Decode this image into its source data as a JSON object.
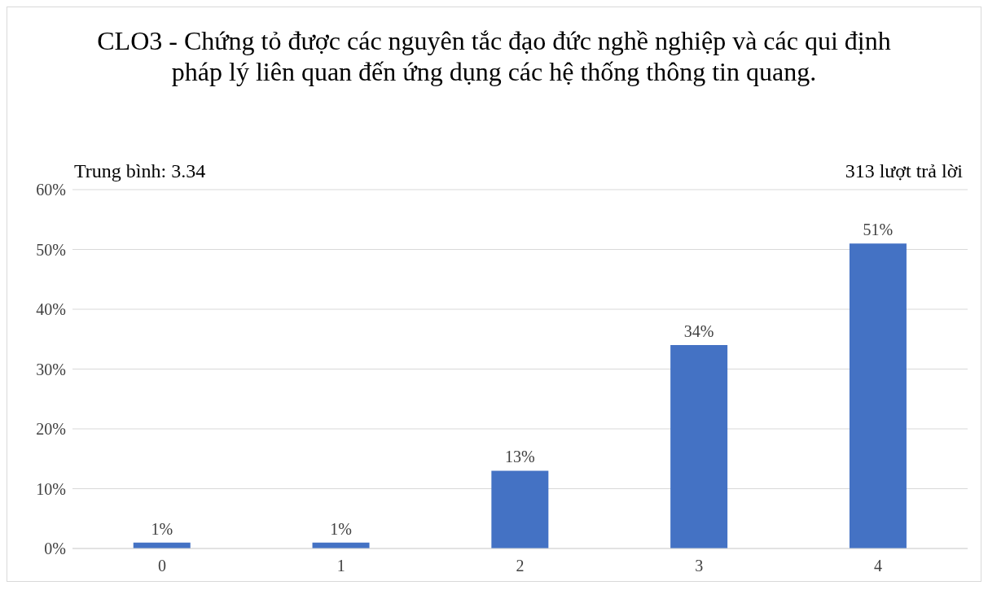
{
  "chart_data": {
    "type": "bar",
    "title": "CLO3 - Chứng tỏ được các nguyên tắc đạo đức nghề nghiệp và các qui định pháp lý liên quan đến ứng dụng các hệ thống thông tin quang.",
    "annotations": [
      "Trung bình: 3.34",
      "313 lượt trả lời"
    ],
    "categories": [
      "0",
      "1",
      "2",
      "3",
      "4"
    ],
    "values": [
      1,
      1,
      13,
      34,
      51
    ],
    "value_labels": [
      "1%",
      "1%",
      "13%",
      "34%",
      "51%"
    ],
    "color": "#4472c4",
    "ylim": [
      0,
      60
    ],
    "yticks": [
      {
        "value": 0,
        "label": "0%"
      },
      {
        "value": 10,
        "label": "10%"
      },
      {
        "value": 20,
        "label": "20%"
      },
      {
        "value": 30,
        "label": "30%"
      },
      {
        "value": 40,
        "label": "40%"
      },
      {
        "value": 50,
        "label": "50%"
      },
      {
        "value": 60,
        "label": "60%"
      }
    ],
    "grid": "y"
  }
}
